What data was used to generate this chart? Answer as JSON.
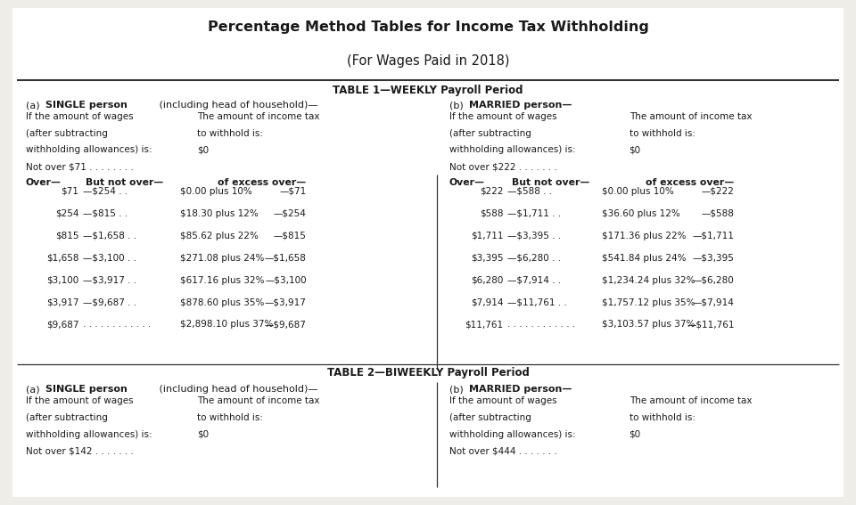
{
  "title1": "Percentage Method Tables for Income Tax Withholding",
  "title2": "(For Wages Paid in 2018)",
  "table1_header": "TABLE 1—WEEKLY Payroll Period",
  "table2_header": "TABLE 2—BIWEEKLY Payroll Period",
  "bg_color": "#eeede8",
  "single_intro": [
    "If the amount of wages",
    "(after subtracting",
    "withholding allowances) is:",
    "Not over $71 . . . . . . . ."
  ],
  "single_intro_right": [
    "The amount of income tax",
    "to withhold is:",
    "$0"
  ],
  "married_intro": [
    "If the amount of wages",
    "(after subtracting",
    "withholding allowances) is:",
    "Not over $222 . . . . . . ."
  ],
  "married_intro_right": [
    "The amount of income tax",
    "to withhold is:",
    "$0"
  ],
  "single_rows": [
    [
      "$71",
      "—$254",
      "$0.00 plus 10%",
      "—$71"
    ],
    [
      "$254",
      "—$815",
      "$18.30 plus 12%",
      "—$254"
    ],
    [
      "$815",
      "—$1,658",
      "$85.62 plus 22%",
      "—$815"
    ],
    [
      "$1,658",
      "—$3,100",
      "$271.08 plus 24%",
      "—$1,658"
    ],
    [
      "$3,100",
      "—$3,917",
      "$617.16 plus 32%",
      "—$3,100"
    ],
    [
      "$3,917",
      "—$9,687",
      "$878.60 plus 35%",
      "—$3,917"
    ],
    [
      "$9,687",
      "",
      "$2,898.10 plus 37%",
      "—$9,687"
    ]
  ],
  "married_rows": [
    [
      "$222",
      "—$588",
      "$0.00 plus 10%",
      "—$222"
    ],
    [
      "$588",
      "—$1,711",
      "$36.60 plus 12%",
      "—$588"
    ],
    [
      "$1,711",
      "—$3,395",
      "$171.36 plus 22%",
      "—$1,711"
    ],
    [
      "$3,395",
      "—$6,280",
      "$541.84 plus 24%",
      "—$3,395"
    ],
    [
      "$6,280",
      "—$7,914",
      "$1,234.24 plus 32%",
      "—$6,280"
    ],
    [
      "$7,914",
      "—$11,761",
      "$1,757.12 plus 35%",
      "—$7,914"
    ],
    [
      "$11,761",
      "",
      "$3,103.57 plus 37%",
      "—$11,761"
    ]
  ],
  "single2_intro": [
    "If the amount of wages",
    "(after subtracting",
    "withholding allowances) is:",
    "Not over $142 . . . . . . ."
  ],
  "single2_intro_right": [
    "The amount of income tax",
    "to withhold is:",
    "$0"
  ],
  "married2_intro": [
    "If the amount of wages",
    "(after subtracting",
    "withholding allowances) is:",
    "Not over $444 . . . . . . ."
  ],
  "married2_intro_right": [
    "The amount of income tax",
    "to withhold is:",
    "$0"
  ]
}
